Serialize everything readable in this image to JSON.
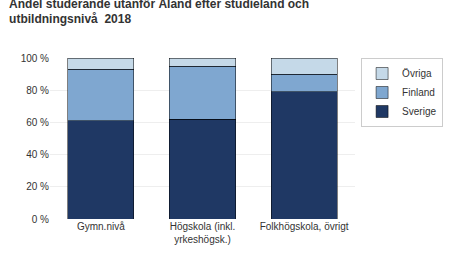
{
  "chart_data": {
    "type": "bar",
    "title": "Andel studerande utanför Åland efter studieland och\nutbildningsnivå  2018",
    "categories": [
      "Gymn.nivå",
      "Högskola (inkl.\nyrkeshögsk.)",
      "Folkhögskola, övrigt"
    ],
    "series": [
      {
        "name": "Sverige",
        "color": "#1F3864",
        "values": [
          61,
          62,
          79
        ]
      },
      {
        "name": "Finland",
        "color": "#7FA7D0",
        "values": [
          32,
          33,
          11
        ]
      },
      {
        "name": "Övriga",
        "color": "#C5D9E8",
        "values": [
          7,
          5,
          10
        ]
      }
    ],
    "stacked": true,
    "ylim": [
      0,
      100
    ],
    "yticks": [
      {
        "value": 0,
        "label": "0 %"
      },
      {
        "value": 20,
        "label": "20 %"
      },
      {
        "value": 40,
        "label": "40 %"
      },
      {
        "value": 60,
        "label": "60 %"
      },
      {
        "value": 80,
        "label": "80 %"
      },
      {
        "value": 100,
        "label": "100 %"
      }
    ],
    "grid": true,
    "legend": "upper right"
  }
}
